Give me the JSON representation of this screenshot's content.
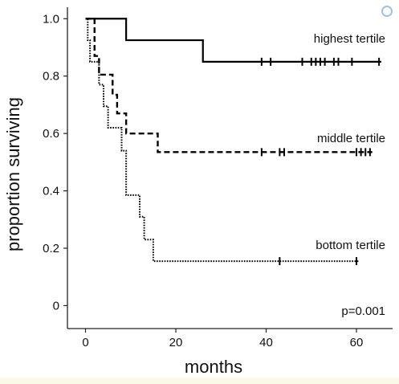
{
  "chart_data": {
    "type": "line",
    "subtype": "kaplan-meier step survival curves",
    "title": "",
    "xlabel": "months",
    "ylabel": "proportion surviving",
    "xlim": [
      -4,
      68
    ],
    "ylim": [
      -0.08,
      1.04
    ],
    "x_ticks": [
      0,
      20,
      40,
      60
    ],
    "x_tick_labels": [
      "0",
      "20",
      "40",
      "60"
    ],
    "y_ticks": [
      0,
      0.2,
      0.4,
      0.6,
      0.8,
      1.0
    ],
    "y_tick_labels": [
      "0",
      "0.2",
      "0.4",
      "0.6",
      "0.8",
      "1.0"
    ],
    "grid": false,
    "legend": "none",
    "annotation": "p=0.001",
    "series": [
      {
        "name": "highest tertile",
        "line_style": "solid",
        "steps": [
          [
            0,
            1.0
          ],
          [
            9,
            0.925
          ],
          [
            26,
            0.85
          ],
          [
            65.5,
            0.85
          ]
        ],
        "censor_ticks": [
          39,
          41,
          48,
          50,
          51,
          52,
          53,
          55,
          56,
          59,
          65
        ]
      },
      {
        "name": "middle tertile",
        "line_style": "dashed",
        "steps": [
          [
            0,
            1.0
          ],
          [
            2,
            0.87
          ],
          [
            3,
            0.805
          ],
          [
            6,
            0.735
          ],
          [
            7,
            0.67
          ],
          [
            9,
            0.6
          ],
          [
            16,
            0.535
          ],
          [
            63.5,
            0.535
          ]
        ],
        "censor_ticks": [
          39,
          43,
          44,
          60,
          61,
          62,
          63
        ]
      },
      {
        "name": "bottom tertile",
        "line_style": "dotted",
        "steps": [
          [
            0,
            1.0
          ],
          [
            0.5,
            0.925
          ],
          [
            1,
            0.85
          ],
          [
            3,
            0.77
          ],
          [
            4,
            0.695
          ],
          [
            5,
            0.62
          ],
          [
            8,
            0.54
          ],
          [
            9,
            0.385
          ],
          [
            12,
            0.31
          ],
          [
            13,
            0.23
          ],
          [
            15,
            0.155
          ],
          [
            60.5,
            0.155
          ]
        ],
        "censor_ticks": [
          43,
          60
        ]
      }
    ]
  }
}
